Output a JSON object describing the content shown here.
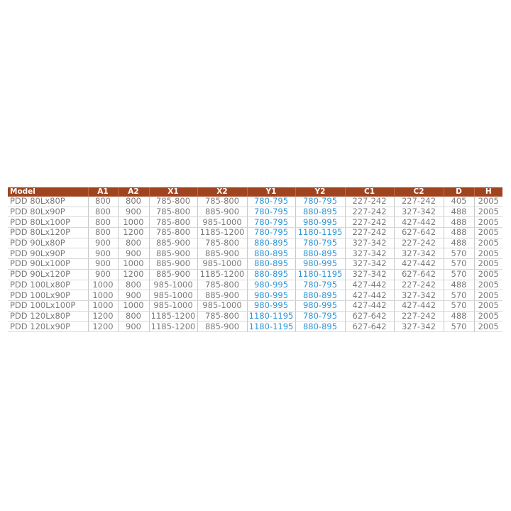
{
  "table": {
    "columns": [
      "Model",
      "A1",
      "A2",
      "X1",
      "X2",
      "Y1",
      "Y2",
      "C1",
      "C2",
      "D",
      "H"
    ],
    "highlight_color": "#2f95d6",
    "header_color": "#a0441f",
    "highlighted_columns": [
      "Y1",
      "Y2"
    ],
    "rows": [
      [
        "PDD 80Lx80P",
        "800",
        "800",
        "785-800",
        "785-800",
        "780-795",
        "780-795",
        "227-242",
        "227-242",
        "405",
        "2005"
      ],
      [
        "PDD 80Lx90P",
        "800",
        "900",
        "785-800",
        "885-900",
        "780-795",
        "880-895",
        "227-242",
        "327-342",
        "488",
        "2005"
      ],
      [
        "PDD 80Lx100P",
        "800",
        "1000",
        "785-800",
        "985-1000",
        "780-795",
        "980-995",
        "227-242",
        "427-442",
        "488",
        "2005"
      ],
      [
        "PDD 80Lx120P",
        "800",
        "1200",
        "785-800",
        "1185-1200",
        "780-795",
        "1180-1195",
        "227-242",
        "627-642",
        "488",
        "2005"
      ],
      [
        "PDD 90Lx80P",
        "900",
        "800",
        "885-900",
        "785-800",
        "880-895",
        "780-795",
        "327-342",
        "227-242",
        "488",
        "2005"
      ],
      [
        "PDD 90Lx90P",
        "900",
        "900",
        "885-900",
        "885-900",
        "880-895",
        "880-895",
        "327-342",
        "327-342",
        "570",
        "2005"
      ],
      [
        "PDD 90Lx100P",
        "900",
        "1000",
        "885-900",
        "985-1000",
        "880-895",
        "980-995",
        "327-342",
        "427-442",
        "570",
        "2005"
      ],
      [
        "PDD 90Lx120P",
        "900",
        "1200",
        "885-900",
        "1185-1200",
        "880-895",
        "1180-1195",
        "327-342",
        "627-642",
        "570",
        "2005"
      ],
      [
        "PDD 100Lx80P",
        "1000",
        "800",
        "985-1000",
        "785-800",
        "980-995",
        "780-795",
        "427-442",
        "227-242",
        "488",
        "2005"
      ],
      [
        "PDD 100Lx90P",
        "1000",
        "900",
        "985-1000",
        "885-900",
        "980-995",
        "880-895",
        "427-442",
        "327-342",
        "570",
        "2005"
      ],
      [
        "PDD 100Lx100P",
        "1000",
        "1000",
        "985-1000",
        "985-1000",
        "980-995",
        "980-995",
        "427-442",
        "427-442",
        "570",
        "2005"
      ],
      [
        "PDD 120Lx80P",
        "1200",
        "800",
        "1185-1200",
        "785-800",
        "1180-1195",
        "780-795",
        "627-642",
        "227-242",
        "488",
        "2005"
      ],
      [
        "PDD 120Lx90P",
        "1200",
        "900",
        "1185-1200",
        "885-900",
        "1180-1195",
        "880-895",
        "627-642",
        "327-342",
        "570",
        "2005"
      ]
    ]
  }
}
